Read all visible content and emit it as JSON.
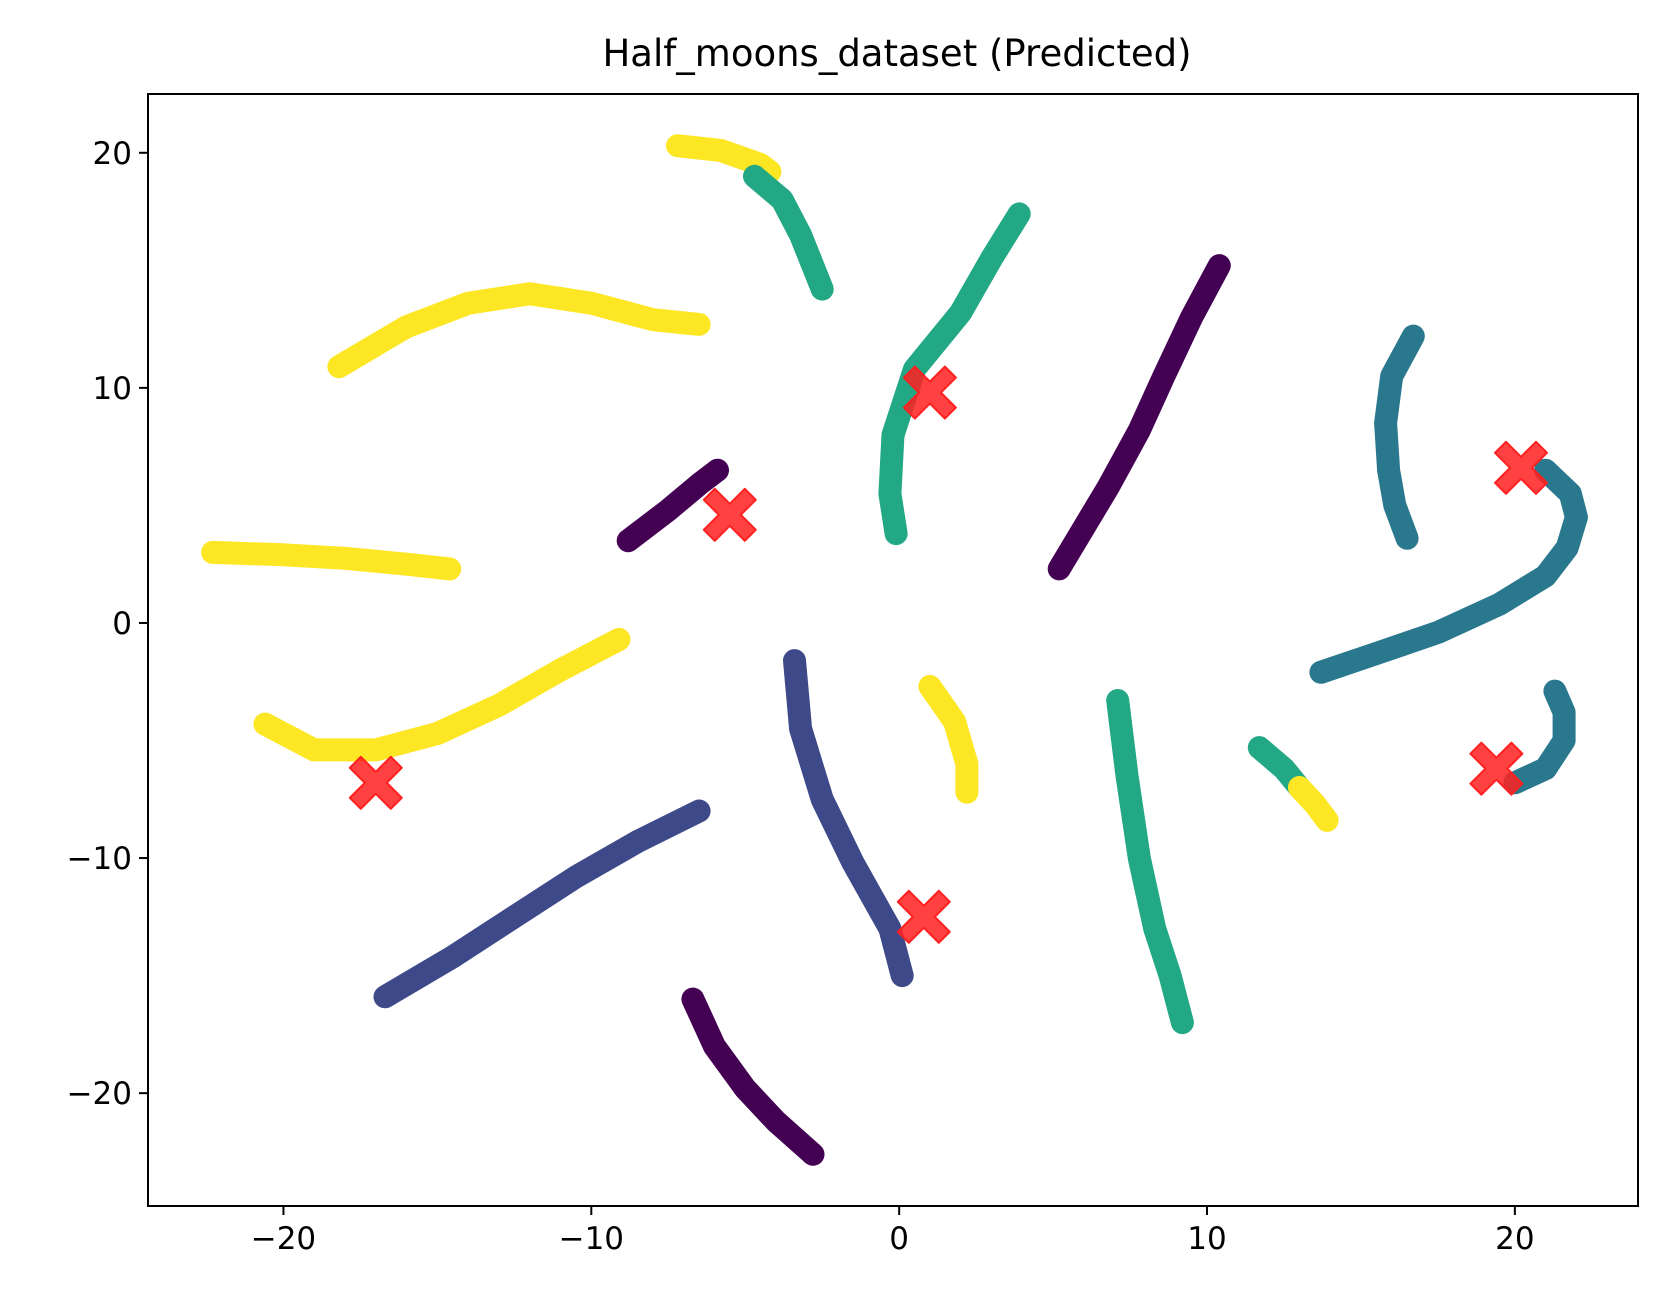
{
  "chart_data": {
    "type": "scatter",
    "title": "Half_moons_dataset (Predicted)",
    "xlabel": "",
    "ylabel": "",
    "xlim": [
      -24.4,
      24.0
    ],
    "ylim": [
      -24.8,
      22.5
    ],
    "xticks": [
      -20,
      -10,
      0,
      10,
      20
    ],
    "yticks": [
      -20,
      -10,
      0,
      10,
      20
    ],
    "xtick_labels": [
      "−20",
      "−10",
      "0",
      "10",
      "20"
    ],
    "ytick_labels": [
      "−20",
      "−10",
      "0",
      "10",
      "20"
    ],
    "grid": false,
    "legend": "none",
    "cluster_colors": {
      "purple": "#440154",
      "indigo": "#3e4989",
      "teal": "#2a788e",
      "green": "#22a884",
      "yellow": "#fde725"
    },
    "centroid_style": {
      "marker": "X",
      "color": "#ff2020"
    },
    "series": [
      {
        "cluster": "yellow",
        "points": [
          [
            -7.2,
            20.3
          ],
          [
            -5.8,
            20.1
          ],
          [
            -4.5,
            19.5
          ],
          [
            -4.2,
            19.2
          ]
        ]
      },
      {
        "cluster": "green",
        "points": [
          [
            -4.7,
            19.0
          ],
          [
            -3.8,
            18.0
          ],
          [
            -3.2,
            16.5
          ],
          [
            -2.5,
            14.2
          ]
        ]
      },
      {
        "cluster": "yellow",
        "points": [
          [
            -18.2,
            10.9
          ],
          [
            -16,
            12.6
          ],
          [
            -14,
            13.6
          ],
          [
            -12,
            14.0
          ],
          [
            -10,
            13.6
          ],
          [
            -8,
            12.9
          ],
          [
            -6.5,
            12.7
          ]
        ]
      },
      {
        "cluster": "green",
        "points": [
          [
            3.9,
            17.4
          ],
          [
            3.0,
            15.5
          ],
          [
            2.0,
            13.2
          ],
          [
            0.5,
            10.8
          ],
          [
            -0.2,
            8.0
          ],
          [
            -0.3,
            5.5
          ],
          [
            -0.1,
            3.8
          ]
        ]
      },
      {
        "cluster": "purple",
        "points": [
          [
            10.4,
            15.2
          ],
          [
            9.5,
            13.0
          ],
          [
            8.6,
            10.5
          ],
          [
            7.8,
            8.2
          ],
          [
            6.8,
            5.8
          ],
          [
            5.2,
            2.3
          ]
        ]
      },
      {
        "cluster": "teal",
        "points": [
          [
            16.7,
            12.2
          ],
          [
            16.0,
            10.5
          ],
          [
            15.8,
            8.5
          ],
          [
            15.9,
            6.5
          ],
          [
            16.1,
            5.0
          ],
          [
            16.5,
            3.6
          ]
        ]
      },
      {
        "cluster": "purple",
        "points": [
          [
            -8.8,
            3.5
          ],
          [
            -7.5,
            4.8
          ],
          [
            -6.5,
            5.9
          ],
          [
            -5.9,
            6.5
          ]
        ]
      },
      {
        "cluster": "yellow",
        "points": [
          [
            -22.3,
            3.0
          ],
          [
            -20,
            2.9
          ],
          [
            -18,
            2.75
          ],
          [
            -16,
            2.5
          ],
          [
            -14.6,
            2.3
          ]
        ]
      },
      {
        "cluster": "teal",
        "points": [
          [
            21.0,
            6.5
          ],
          [
            21.8,
            5.5
          ],
          [
            22.0,
            4.5
          ],
          [
            21.7,
            3.2
          ],
          [
            21.0,
            2.0
          ],
          [
            19.5,
            0.8
          ],
          [
            17.5,
            -0.4
          ],
          [
            15.5,
            -1.3
          ],
          [
            13.7,
            -2.1
          ]
        ]
      },
      {
        "cluster": "yellow",
        "points": [
          [
            -9.1,
            -0.7
          ],
          [
            -11,
            -2.0
          ],
          [
            -13,
            -3.5
          ],
          [
            -15,
            -4.7
          ],
          [
            -17,
            -5.4
          ],
          [
            -19,
            -5.4
          ],
          [
            -20.6,
            -4.3
          ]
        ]
      },
      {
        "cluster": "indigo",
        "points": [
          [
            -3.4,
            -1.6
          ],
          [
            -3.2,
            -4.5
          ],
          [
            -2.5,
            -7.5
          ],
          [
            -1.5,
            -10.2
          ],
          [
            -0.3,
            -13.0
          ],
          [
            0.1,
            -15.0
          ]
        ]
      },
      {
        "cluster": "yellow",
        "points": [
          [
            1.0,
            -2.7
          ],
          [
            1.8,
            -4.2
          ],
          [
            2.2,
            -6.0
          ],
          [
            2.2,
            -7.2
          ]
        ]
      },
      {
        "cluster": "green",
        "points": [
          [
            7.1,
            -3.3
          ],
          [
            7.4,
            -6.5
          ],
          [
            7.8,
            -10.0
          ],
          [
            8.3,
            -13.0
          ],
          [
            8.8,
            -15.0
          ],
          [
            9.2,
            -17.0
          ]
        ]
      },
      {
        "cluster": "green",
        "points": [
          [
            11.7,
            -5.3
          ],
          [
            12.5,
            -6.2
          ],
          [
            13.0,
            -7.0
          ]
        ]
      },
      {
        "cluster": "yellow",
        "points": [
          [
            13.0,
            -7.0
          ],
          [
            13.5,
            -7.7
          ],
          [
            13.9,
            -8.4
          ]
        ]
      },
      {
        "cluster": "teal",
        "points": [
          [
            21.3,
            -2.9
          ],
          [
            21.6,
            -3.8
          ],
          [
            21.6,
            -5.0
          ],
          [
            21.0,
            -6.2
          ],
          [
            20.0,
            -6.8
          ]
        ]
      },
      {
        "cluster": "indigo",
        "points": [
          [
            -6.5,
            -8.0
          ],
          [
            -8.5,
            -9.3
          ],
          [
            -10.5,
            -10.8
          ],
          [
            -12.5,
            -12.5
          ],
          [
            -14.5,
            -14.2
          ],
          [
            -16.7,
            -15.9
          ]
        ]
      },
      {
        "cluster": "purple",
        "points": [
          [
            -6.7,
            -16.0
          ],
          [
            -6.0,
            -18.0
          ],
          [
            -5.0,
            -19.8
          ],
          [
            -4.0,
            -21.2
          ],
          [
            -2.8,
            -22.6
          ]
        ]
      }
    ],
    "centroids": [
      [
        1.0,
        9.8
      ],
      [
        -5.5,
        4.6
      ],
      [
        -17.0,
        -6.8
      ],
      [
        0.8,
        -12.5
      ],
      [
        20.2,
        6.6
      ],
      [
        19.4,
        -6.2
      ]
    ]
  }
}
